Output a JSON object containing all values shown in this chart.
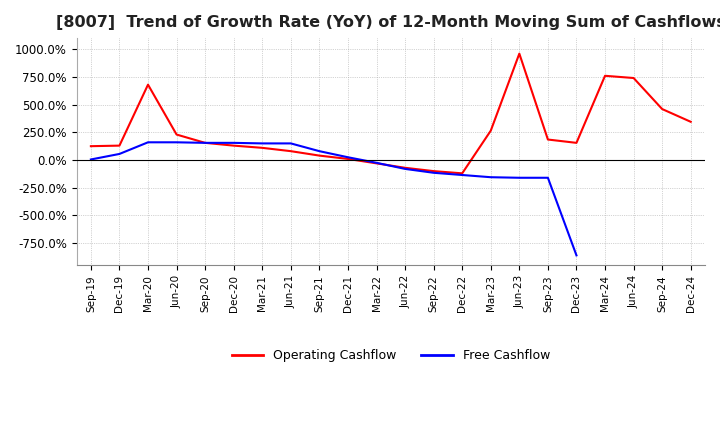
{
  "title": "[8007]  Trend of Growth Rate (YoY) of 12-Month Moving Sum of Cashflows",
  "title_fontsize": 11.5,
  "ylim": [
    -950,
    1100
  ],
  "yticks": [
    -750,
    -500,
    -250,
    0,
    250,
    500,
    750,
    1000
  ],
  "ytick_labels": [
    "-750.0%",
    "-500.0%",
    "-250.0%",
    "0.0%",
    "250.0%",
    "500.0%",
    "750.0%",
    "1000.0%"
  ],
  "x_labels": [
    "Sep-19",
    "Dec-19",
    "Mar-20",
    "Jun-20",
    "Sep-20",
    "Dec-20",
    "Mar-21",
    "Jun-21",
    "Sep-21",
    "Dec-21",
    "Mar-22",
    "Jun-22",
    "Sep-22",
    "Dec-22",
    "Mar-23",
    "Jun-23",
    "Sep-23",
    "Dec-23",
    "Mar-24",
    "Jun-24",
    "Sep-24",
    "Dec-24"
  ],
  "operating_color": "#ff0000",
  "free_color": "#0000ff",
  "legend_op": "Operating Cashflow",
  "legend_free": "Free Cashflow",
  "background_color": "#ffffff",
  "operating_cashflow": [
    125,
    130,
    680,
    230,
    155,
    130,
    110,
    80,
    40,
    10,
    -30,
    -70,
    -100,
    -120,
    265,
    960,
    185,
    155,
    760,
    740,
    460,
    345
  ],
  "free_cashflow": [
    5,
    55,
    160,
    160,
    155,
    155,
    150,
    150,
    80,
    25,
    -25,
    -80,
    -115,
    -135,
    -155,
    -160,
    -160,
    -860,
    null,
    null,
    null,
    null
  ]
}
